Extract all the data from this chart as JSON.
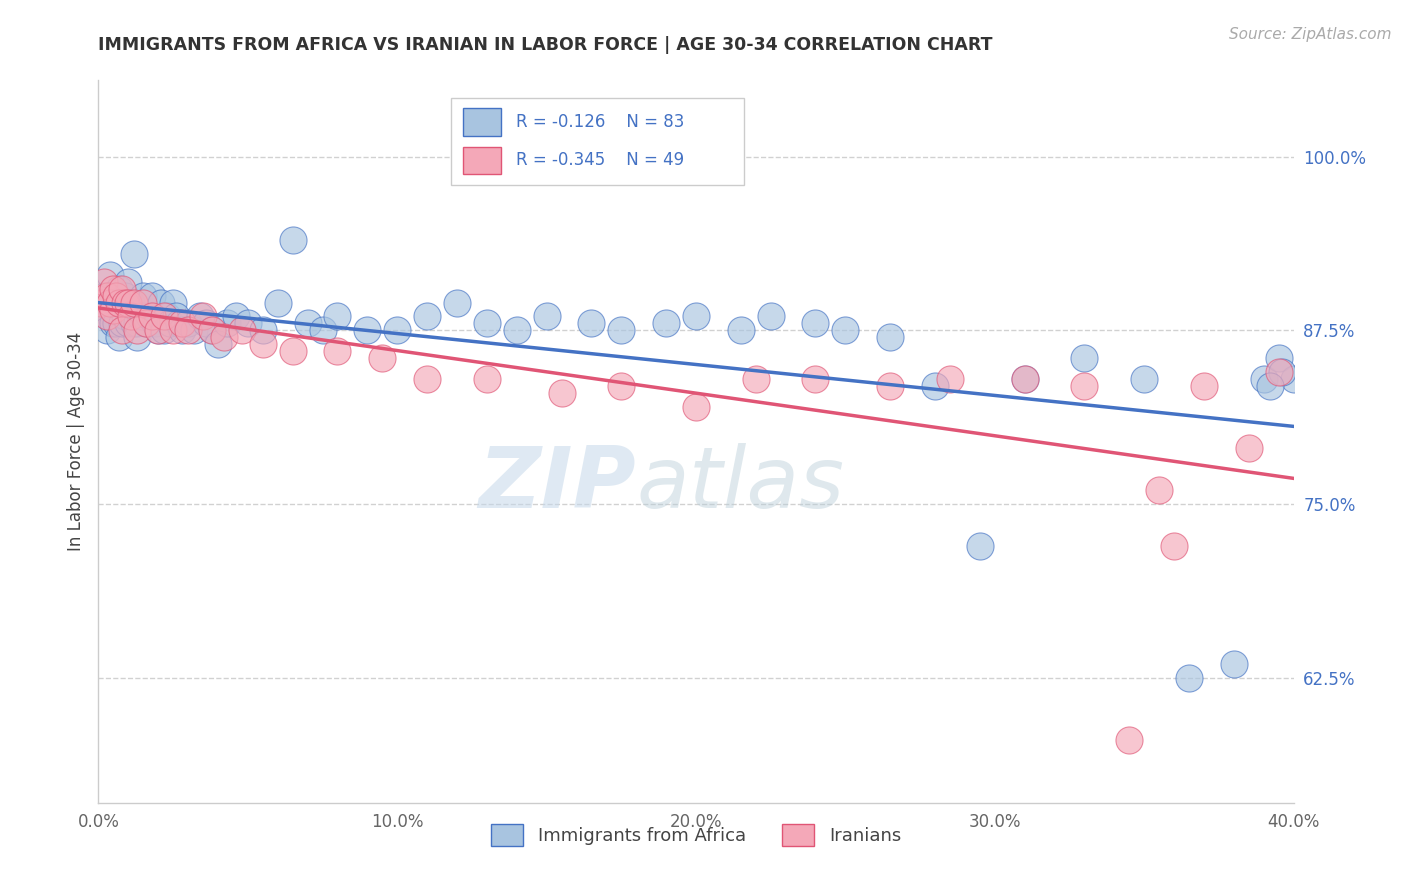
{
  "title": "IMMIGRANTS FROM AFRICA VS IRANIAN IN LABOR FORCE | AGE 30-34 CORRELATION CHART",
  "source": "Source: ZipAtlas.com",
  "ylabel": "In Labor Force | Age 30-34",
  "xlim": [
    0.0,
    0.4
  ],
  "ylim": [
    0.535,
    1.055
  ],
  "xtick_labels": [
    "0.0%",
    "10.0%",
    "20.0%",
    "30.0%",
    "40.0%"
  ],
  "xtick_values": [
    0.0,
    0.1,
    0.2,
    0.3,
    0.4
  ],
  "ytick_labels": [
    "62.5%",
    "75.0%",
    "87.5%",
    "100.0%"
  ],
  "ytick_values": [
    0.625,
    0.75,
    0.875,
    1.0
  ],
  "blue_color": "#a8c4e0",
  "pink_color": "#f4a8b8",
  "blue_line_color": "#4472c4",
  "pink_line_color": "#e05575",
  "legend_blue_R": "-0.126",
  "legend_blue_N": "83",
  "legend_pink_R": "-0.345",
  "legend_pink_N": "49",
  "legend_blue_label": "Immigrants from Africa",
  "legend_pink_label": "Iranians",
  "watermark_zip": "ZIP",
  "watermark_atlas": "atlas",
  "background_color": "#ffffff",
  "africa_x": [
    0.001,
    0.002,
    0.002,
    0.003,
    0.003,
    0.004,
    0.004,
    0.005,
    0.005,
    0.006,
    0.006,
    0.007,
    0.007,
    0.008,
    0.008,
    0.009,
    0.009,
    0.01,
    0.01,
    0.011,
    0.012,
    0.012,
    0.013,
    0.013,
    0.014,
    0.015,
    0.015,
    0.016,
    0.017,
    0.018,
    0.019,
    0.02,
    0.021,
    0.022,
    0.023,
    0.024,
    0.025,
    0.026,
    0.027,
    0.028,
    0.03,
    0.032,
    0.034,
    0.036,
    0.038,
    0.04,
    0.043,
    0.046,
    0.05,
    0.055,
    0.06,
    0.065,
    0.07,
    0.075,
    0.08,
    0.09,
    0.1,
    0.11,
    0.12,
    0.13,
    0.14,
    0.15,
    0.165,
    0.175,
    0.19,
    0.2,
    0.215,
    0.225,
    0.24,
    0.25,
    0.265,
    0.28,
    0.295,
    0.31,
    0.33,
    0.35,
    0.365,
    0.38,
    0.39,
    0.395,
    0.4,
    0.396,
    0.392
  ],
  "africa_y": [
    0.895,
    0.89,
    0.9,
    0.885,
    0.875,
    0.895,
    0.915,
    0.89,
    0.88,
    0.895,
    0.88,
    0.905,
    0.87,
    0.895,
    0.88,
    0.9,
    0.885,
    0.91,
    0.88,
    0.895,
    0.88,
    0.93,
    0.88,
    0.87,
    0.885,
    0.9,
    0.885,
    0.88,
    0.885,
    0.9,
    0.88,
    0.875,
    0.895,
    0.875,
    0.885,
    0.88,
    0.895,
    0.885,
    0.88,
    0.875,
    0.88,
    0.875,
    0.885,
    0.88,
    0.875,
    0.865,
    0.88,
    0.885,
    0.88,
    0.875,
    0.895,
    0.94,
    0.88,
    0.875,
    0.885,
    0.875,
    0.875,
    0.885,
    0.895,
    0.88,
    0.875,
    0.885,
    0.88,
    0.875,
    0.88,
    0.885,
    0.875,
    0.885,
    0.88,
    0.875,
    0.87,
    0.835,
    0.72,
    0.84,
    0.855,
    0.84,
    0.625,
    0.635,
    0.84,
    0.855,
    0.84,
    0.845,
    0.835
  ],
  "iran_x": [
    0.001,
    0.002,
    0.003,
    0.003,
    0.004,
    0.005,
    0.005,
    0.006,
    0.007,
    0.008,
    0.008,
    0.009,
    0.01,
    0.011,
    0.012,
    0.013,
    0.015,
    0.016,
    0.018,
    0.02,
    0.022,
    0.025,
    0.028,
    0.03,
    0.035,
    0.038,
    0.042,
    0.048,
    0.055,
    0.065,
    0.08,
    0.095,
    0.11,
    0.13,
    0.155,
    0.175,
    0.2,
    0.22,
    0.24,
    0.265,
    0.285,
    0.31,
    0.33,
    0.355,
    0.37,
    0.385,
    0.395,
    0.36,
    0.345
  ],
  "iran_y": [
    0.895,
    0.91,
    0.9,
    0.885,
    0.895,
    0.905,
    0.89,
    0.9,
    0.895,
    0.905,
    0.875,
    0.895,
    0.895,
    0.885,
    0.895,
    0.875,
    0.895,
    0.88,
    0.885,
    0.875,
    0.885,
    0.875,
    0.88,
    0.875,
    0.885,
    0.875,
    0.87,
    0.875,
    0.865,
    0.86,
    0.86,
    0.855,
    0.84,
    0.84,
    0.83,
    0.835,
    0.82,
    0.84,
    0.84,
    0.835,
    0.84,
    0.84,
    0.835,
    0.76,
    0.835,
    0.79,
    0.845,
    0.72,
    0.58
  ]
}
